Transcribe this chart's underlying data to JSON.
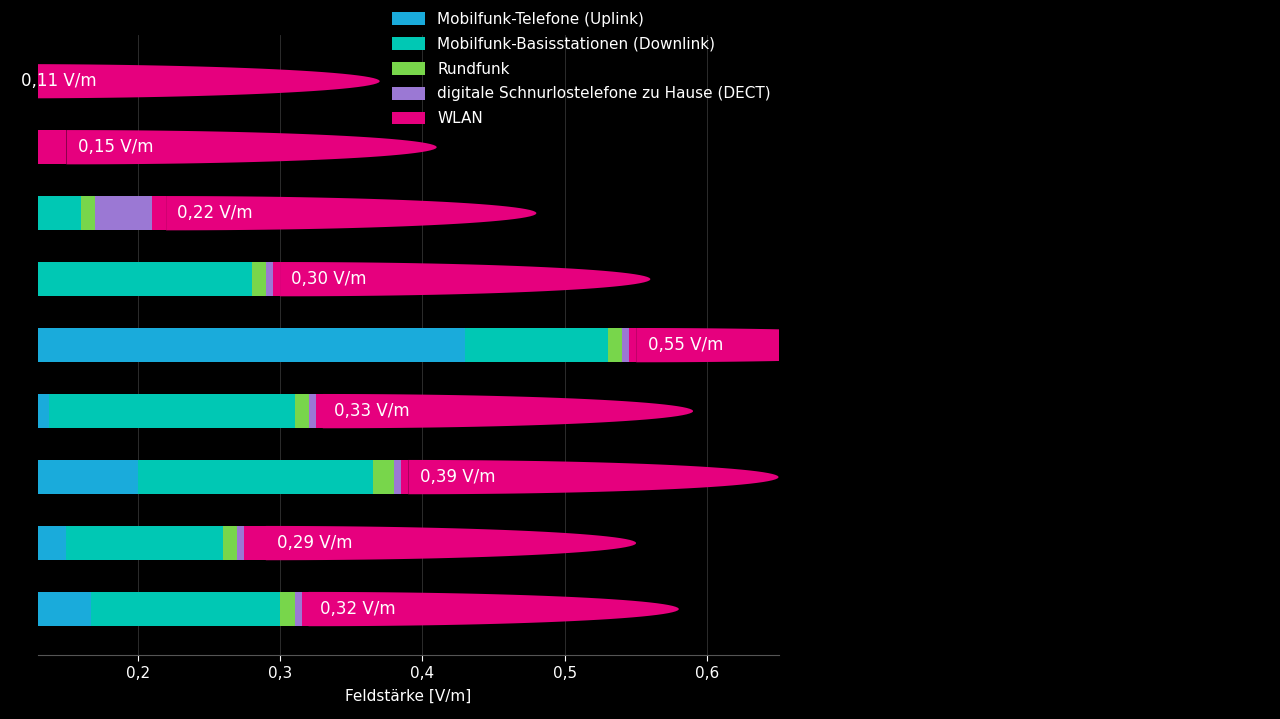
{
  "segments": [
    {
      "label": "Mobilfunk-Telefone (Uplink)",
      "color": "#1aabdb",
      "values": [
        0.03,
        0.07,
        0.07,
        0.13,
        0.43,
        0.14,
        0.2,
        0.15,
        0.17
      ]
    },
    {
      "label": "Mobilfunk-Basisstationen (Downlink)",
      "color": "#00c8b4",
      "values": [
        0.02,
        0.02,
        0.09,
        0.155,
        0.1,
        0.175,
        0.165,
        0.11,
        0.135
      ]
    },
    {
      "label": "Rundfunk",
      "color": "#78d64b",
      "values": [
        0.025,
        0.025,
        0.01,
        0.01,
        0.01,
        0.01,
        0.015,
        0.01,
        0.01
      ]
    },
    {
      "label": "digitale Schnurlostelefone zu Hause (DECT)",
      "color": "#9b78d4",
      "values": [
        0.02,
        0.01,
        0.04,
        0.005,
        0.005,
        0.005,
        0.005,
        0.005,
        0.005
      ]
    },
    {
      "label": "WLAN",
      "color": "#e6007e",
      "values": [
        0.015,
        0.025,
        0.01,
        0.005,
        0.005,
        0.005,
        0.005,
        0.015,
        0.005
      ]
    }
  ],
  "totals": [
    0.11,
    0.15,
    0.22,
    0.3,
    0.55,
    0.33,
    0.39,
    0.29,
    0.32
  ],
  "total_labels": [
    "0,11 V/m",
    "0,15 V/m",
    "0,22 V/m",
    "0,30 V/m",
    "0,55 V/m",
    "0,33 V/m",
    "0,39 V/m",
    "0,29 V/m",
    "0,32 V/m"
  ],
  "xlabel": "Feldstärke [V/m]",
  "xlim_left": 0.13,
  "xlim_right": 0.65,
  "xticks": [
    0.2,
    0.3,
    0.4,
    0.5,
    0.6
  ],
  "xticklabels": [
    "0,2",
    "0,3",
    "0,4",
    "0,5",
    "0,6"
  ],
  "bar_height": 0.52,
  "background_color": "#000000",
  "text_color": "#ffffff",
  "label_fontsize": 12,
  "legend_fontsize": 11,
  "axis_label_fontsize": 11
}
